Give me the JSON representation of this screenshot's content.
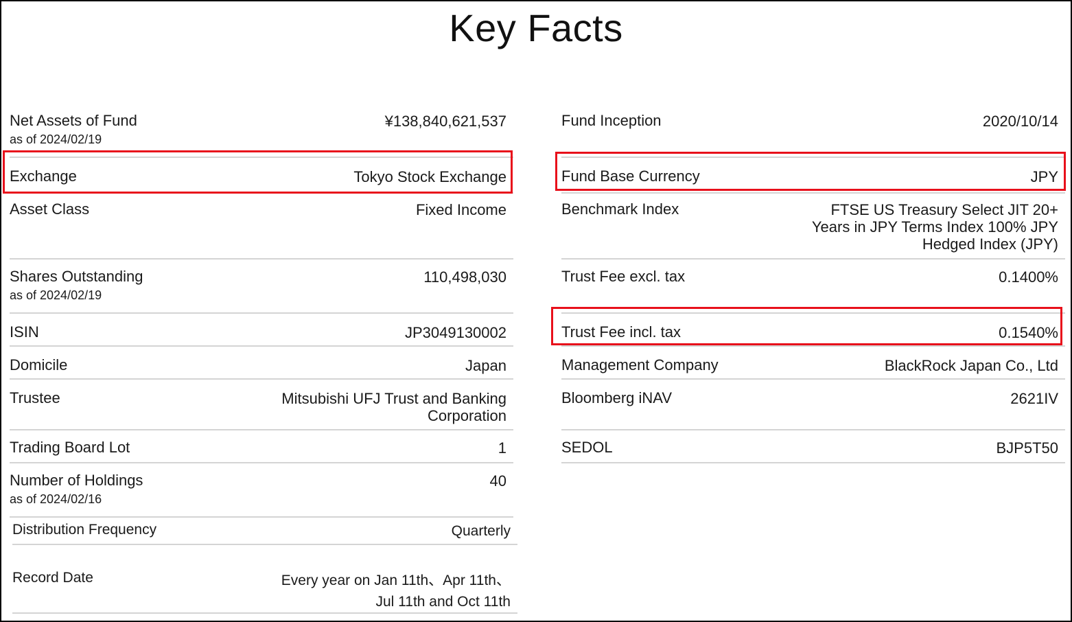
{
  "title": "Key Facts",
  "highlight_color": "#e8101b",
  "left_column": [
    {
      "label": "Net Assets of Fund",
      "sub": "as of 2024/02/19",
      "value_lines": [
        "¥138,840,621,537"
      ]
    },
    {
      "label": "Exchange",
      "sub": "",
      "value_lines": [
        "Tokyo Stock Exchange"
      ]
    },
    {
      "label": "Asset Class",
      "sub": "",
      "value_lines": [
        "Fixed Income"
      ]
    },
    {
      "label": "Shares Outstanding",
      "sub": "as of 2024/02/19",
      "value_lines": [
        "110,498,030"
      ]
    },
    {
      "label": "ISIN",
      "sub": "",
      "value_lines": [
        "JP3049130002"
      ]
    },
    {
      "label": "Domicile",
      "sub": "",
      "value_lines": [
        "Japan"
      ]
    },
    {
      "label": "Trustee",
      "sub": "",
      "value_lines": [
        "Mitsubishi UFJ Trust and Banking",
        "Corporation"
      ]
    },
    {
      "label": "Trading Board Lot",
      "sub": "",
      "value_lines": [
        "1"
      ]
    },
    {
      "label": "Number of Holdings",
      "sub": "as of 2024/02/16",
      "value_lines": [
        "40"
      ]
    },
    {
      "label": "Distribution Frequency",
      "sub": "",
      "value_lines": [
        "Quarterly"
      ]
    },
    {
      "label": "Record Date",
      "sub": "",
      "value_lines": [
        "Every year on Jan 11th、Apr 11th、",
        "Jul 11th and Oct 11th"
      ]
    }
  ],
  "right_column": [
    {
      "label": "Fund Inception",
      "value_lines": [
        "2020/10/14"
      ]
    },
    {
      "label": "Fund Base Currency",
      "value_lines": [
        "JPY"
      ]
    },
    {
      "label": "Benchmark Index",
      "value_lines": [
        "FTSE US Treasury Select JIT 20+",
        "Years in JPY Terms Index 100% JPY",
        "Hedged Index (JPY)"
      ]
    },
    {
      "label": "Trust Fee excl. tax",
      "value_lines": [
        "0.1400%"
      ]
    },
    {
      "label": "Trust Fee incl. tax",
      "value_lines": [
        "0.1540%"
      ]
    },
    {
      "label": "Management Company",
      "value_lines": [
        "BlackRock Japan Co., Ltd"
      ]
    },
    {
      "label": "Bloomberg iNAV",
      "value_lines": [
        "2621IV"
      ]
    },
    {
      "label": "SEDOL",
      "value_lines": [
        "BJP5T50"
      ]
    }
  ]
}
